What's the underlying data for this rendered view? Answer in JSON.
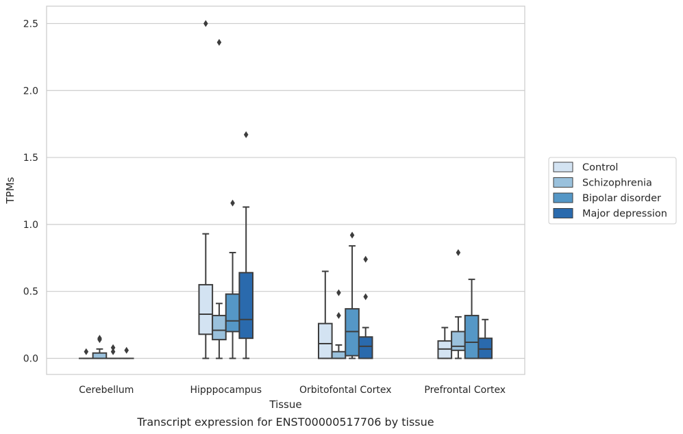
{
  "chart_data": {
    "type": "boxplot",
    "title": "",
    "caption": "Transcript expression for ENST00000517706 by tissue",
    "xlabel": "Tissue",
    "ylabel": "TPMs",
    "ylim": [
      -0.12,
      2.63
    ],
    "yticks": [
      0.0,
      0.5,
      1.0,
      1.5,
      2.0,
      2.5
    ],
    "ytick_labels": [
      "0.0",
      "0.5",
      "1.0",
      "1.5",
      "2.0",
      "2.5"
    ],
    "grid": "horizontal",
    "legend_position": "right",
    "categories": [
      "Cerebellum",
      "Hipppocampus",
      "Orbitofontal Cortex",
      "Prefrontal Cortex"
    ],
    "series": [
      {
        "name": "Control",
        "color": "#d3e3f2",
        "boxes": [
          {
            "whisker_low": 0.0,
            "q1": 0.0,
            "median": 0.0,
            "q3": 0.0,
            "whisker_high": 0.0,
            "outliers": [
              0.05
            ]
          },
          {
            "whisker_low": 0.0,
            "q1": 0.18,
            "median": 0.33,
            "q3": 0.55,
            "whisker_high": 0.93,
            "outliers": [
              2.5
            ]
          },
          {
            "whisker_low": 0.0,
            "q1": 0.0,
            "median": 0.11,
            "q3": 0.26,
            "whisker_high": 0.65,
            "outliers": []
          },
          {
            "whisker_low": 0.0,
            "q1": 0.0,
            "median": 0.07,
            "q3": 0.13,
            "whisker_high": 0.23,
            "outliers": []
          }
        ]
      },
      {
        "name": "Schizophrenia",
        "color": "#9ac1dc",
        "boxes": [
          {
            "whisker_low": 0.0,
            "q1": 0.0,
            "median": 0.0,
            "q3": 0.04,
            "whisker_high": 0.07,
            "outliers": [
              0.14,
              0.15
            ]
          },
          {
            "whisker_low": 0.0,
            "q1": 0.14,
            "median": 0.21,
            "q3": 0.32,
            "whisker_high": 0.41,
            "outliers": [
              2.36
            ]
          },
          {
            "whisker_low": 0.0,
            "q1": 0.0,
            "median": 0.0,
            "q3": 0.05,
            "whisker_high": 0.1,
            "outliers": [
              0.32,
              0.49
            ]
          },
          {
            "whisker_low": 0.0,
            "q1": 0.06,
            "median": 0.09,
            "q3": 0.2,
            "whisker_high": 0.31,
            "outliers": [
              0.79
            ]
          }
        ]
      },
      {
        "name": "Bipolar disorder",
        "color": "#5597c6",
        "boxes": [
          {
            "whisker_low": 0.0,
            "q1": 0.0,
            "median": 0.0,
            "q3": 0.0,
            "whisker_high": 0.0,
            "outliers": [
              0.05,
              0.08
            ]
          },
          {
            "whisker_low": 0.0,
            "q1": 0.2,
            "median": 0.28,
            "q3": 0.48,
            "whisker_high": 0.79,
            "outliers": [
              1.16
            ]
          },
          {
            "whisker_low": 0.0,
            "q1": 0.02,
            "median": 0.2,
            "q3": 0.37,
            "whisker_high": 0.84,
            "outliers": [
              0.92
            ]
          },
          {
            "whisker_low": 0.0,
            "q1": 0.0,
            "median": 0.12,
            "q3": 0.32,
            "whisker_high": 0.59,
            "outliers": []
          }
        ]
      },
      {
        "name": "Major depression",
        "color": "#2a6aad",
        "boxes": [
          {
            "whisker_low": 0.0,
            "q1": 0.0,
            "median": 0.0,
            "q3": 0.0,
            "whisker_high": 0.0,
            "outliers": [
              0.06
            ]
          },
          {
            "whisker_low": 0.0,
            "q1": 0.15,
            "median": 0.29,
            "q3": 0.64,
            "whisker_high": 1.13,
            "outliers": [
              1.67
            ]
          },
          {
            "whisker_low": 0.0,
            "q1": 0.0,
            "median": 0.09,
            "q3": 0.16,
            "whisker_high": 0.23,
            "outliers": [
              0.46,
              0.74
            ]
          },
          {
            "whisker_low": 0.0,
            "q1": 0.0,
            "median": 0.07,
            "q3": 0.15,
            "whisker_high": 0.29,
            "outliers": []
          }
        ]
      }
    ]
  }
}
